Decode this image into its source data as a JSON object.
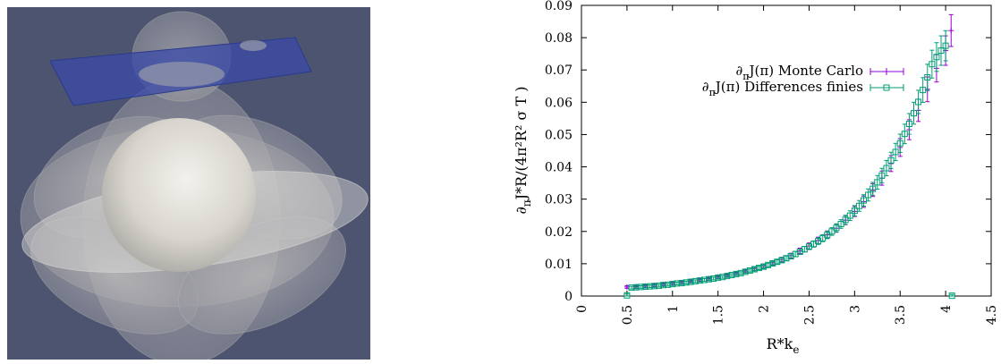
{
  "figure": {
    "left_panel": {
      "content": "3D render",
      "background_color": "#4d5470",
      "plane_color": "#3a4aa8",
      "body_color": "#d9d6d0"
    },
    "right_panel": "chart"
  },
  "chart_data": {
    "type": "scatter",
    "title": "",
    "xlabel_main": "R*k",
    "xlabel_sub": "e",
    "ylabel_parts": [
      "∂",
      "π",
      "J*R/(4π²R² σ T )"
    ],
    "xlim": [
      0,
      4.5
    ],
    "ylim": [
      0,
      0.09
    ],
    "xticks": [
      "0",
      "0.5",
      "1",
      "1.5",
      "2",
      "2.5",
      "3",
      "3.5",
      "4",
      "4.5"
    ],
    "yticks": [
      "0",
      "0.01",
      "0.02",
      "0.03",
      "0.04",
      "0.05",
      "0.06",
      "0.07",
      "0.08",
      "0.09"
    ],
    "grid": false,
    "legend_position": "top-right",
    "series": [
      {
        "legend_pre": "∂",
        "legend_sub": "π",
        "legend_post": "J(π) Monte Carlo",
        "color": "#9400d3",
        "marker": "plus",
        "points": [
          [
            0.5,
            0.0028
          ],
          [
            0.6,
            0.0029
          ],
          [
            0.7,
            0.0031
          ],
          [
            0.8,
            0.0033
          ],
          [
            0.9,
            0.0036
          ],
          [
            1.0,
            0.0039
          ],
          [
            1.1,
            0.0042
          ],
          [
            1.2,
            0.0046
          ],
          [
            1.3,
            0.005
          ],
          [
            1.4,
            0.0054
          ],
          [
            1.5,
            0.0059
          ],
          [
            1.6,
            0.0064
          ],
          [
            1.7,
            0.007
          ],
          [
            1.8,
            0.0077
          ],
          [
            1.9,
            0.0084
          ],
          [
            2.0,
            0.0093
          ],
          [
            2.1,
            0.0103
          ],
          [
            2.2,
            0.0113
          ],
          [
            2.3,
            0.0125
          ],
          [
            2.4,
            0.014
          ],
          [
            2.5,
            0.0155
          ],
          [
            2.6,
            0.0172
          ],
          [
            2.7,
            0.019
          ],
          [
            2.8,
            0.021
          ],
          [
            2.9,
            0.0235
          ],
          [
            3.0,
            0.0262
          ],
          [
            3.1,
            0.0292
          ],
          [
            3.2,
            0.0328
          ],
          [
            3.3,
            0.0365
          ],
          [
            3.4,
            0.041
          ],
          [
            3.5,
            0.046
          ],
          [
            3.6,
            0.0515
          ],
          [
            3.7,
            0.0575
          ],
          [
            3.8,
            0.064
          ],
          [
            3.9,
            0.0705
          ],
          [
            4.0,
            0.076
          ],
          [
            4.06,
            0.0822
          ]
        ]
      },
      {
        "legend_pre": "∂",
        "legend_sub": "π",
        "legend_post": "J(π) Differences finies",
        "color": "#009e73",
        "marker": "open-square",
        "points": [
          [
            0.5,
            0.0002
          ],
          [
            0.55,
            0.0026
          ],
          [
            0.6,
            0.0027
          ],
          [
            0.65,
            0.0028
          ],
          [
            0.7,
            0.0029
          ],
          [
            0.75,
            0.003
          ],
          [
            0.8,
            0.0031
          ],
          [
            0.85,
            0.0032
          ],
          [
            0.9,
            0.0034
          ],
          [
            0.95,
            0.0035
          ],
          [
            1.0,
            0.0037
          ],
          [
            1.05,
            0.0039
          ],
          [
            1.1,
            0.004
          ],
          [
            1.15,
            0.0042
          ],
          [
            1.2,
            0.0044
          ],
          [
            1.25,
            0.0046
          ],
          [
            1.3,
            0.0048
          ],
          [
            1.35,
            0.005
          ],
          [
            1.4,
            0.0052
          ],
          [
            1.45,
            0.0054
          ],
          [
            1.5,
            0.0057
          ],
          [
            1.55,
            0.0059
          ],
          [
            1.6,
            0.0062
          ],
          [
            1.65,
            0.0065
          ],
          [
            1.7,
            0.0068
          ],
          [
            1.75,
            0.0071
          ],
          [
            1.8,
            0.0075
          ],
          [
            1.85,
            0.0079
          ],
          [
            1.9,
            0.0083
          ],
          [
            1.95,
            0.0087
          ],
          [
            2.0,
            0.0091
          ],
          [
            2.05,
            0.0096
          ],
          [
            2.1,
            0.0101
          ],
          [
            2.15,
            0.0106
          ],
          [
            2.2,
            0.0111
          ],
          [
            2.25,
            0.0117
          ],
          [
            2.3,
            0.0123
          ],
          [
            2.35,
            0.013
          ],
          [
            2.4,
            0.0137
          ],
          [
            2.45,
            0.0145
          ],
          [
            2.5,
            0.0153
          ],
          [
            2.55,
            0.0161
          ],
          [
            2.6,
            0.017
          ],
          [
            2.65,
            0.0179
          ],
          [
            2.7,
            0.0189
          ],
          [
            2.75,
            0.02
          ],
          [
            2.8,
            0.0211
          ],
          [
            2.85,
            0.0223
          ],
          [
            2.9,
            0.0236
          ],
          [
            2.95,
            0.0249
          ],
          [
            3.0,
            0.0264
          ],
          [
            3.05,
            0.0279
          ],
          [
            3.1,
            0.0296
          ],
          [
            3.15,
            0.0313
          ],
          [
            3.2,
            0.0332
          ],
          [
            3.25,
            0.0352
          ],
          [
            3.3,
            0.0373
          ],
          [
            3.35,
            0.0396
          ],
          [
            3.4,
            0.042
          ],
          [
            3.45,
            0.0446
          ],
          [
            3.5,
            0.0473
          ],
          [
            3.55,
            0.0502
          ],
          [
            3.6,
            0.0533
          ],
          [
            3.65,
            0.0566
          ],
          [
            3.7,
            0.0601
          ],
          [
            3.75,
            0.0638
          ],
          [
            3.8,
            0.0677
          ],
          [
            3.85,
            0.0718
          ],
          [
            3.9,
            0.074
          ],
          [
            3.95,
            0.076
          ],
          [
            4.0,
            0.0775
          ],
          [
            4.07,
            0.0001
          ]
        ]
      }
    ]
  }
}
